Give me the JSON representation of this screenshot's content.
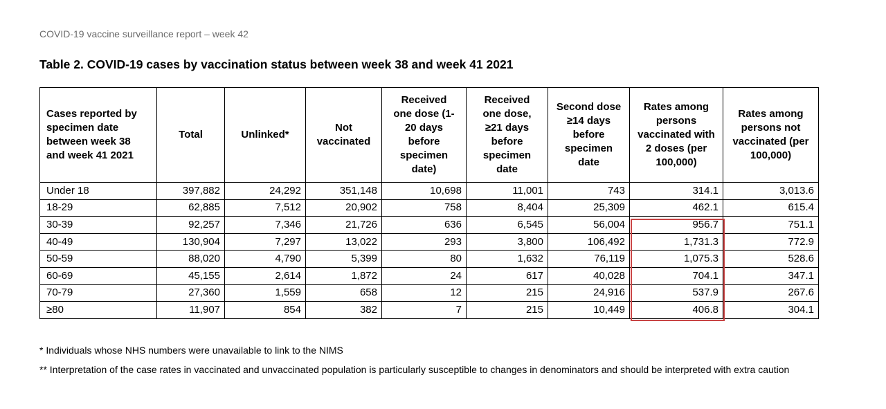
{
  "report_header": "COVID-19 vaccine surveillance report – week 42",
  "table_title": "Table 2. COVID-19 cases by vaccination status between week 38 and week 41 2021",
  "columns": [
    "Cases reported by specimen date between week 38 and week 41 2021",
    "Total",
    "Unlinked*",
    "Not vaccinated",
    "Received one dose (1-20 days before specimen date)",
    "Received one dose, ≥21 days before specimen date",
    "Second dose ≥14 days before specimen date",
    "Rates among persons vaccinated with 2 doses (per 100,000)",
    "Rates among persons not vaccinated (per 100,000)"
  ],
  "rows": [
    [
      "Under 18",
      "397,882",
      "24,292",
      "351,148",
      "10,698",
      "11,001",
      "743",
      "314.1",
      "3,013.6"
    ],
    [
      "18-29",
      "62,885",
      "7,512",
      "20,902",
      "758",
      "8,404",
      "25,309",
      "462.1",
      "615.4"
    ],
    [
      "30-39",
      "92,257",
      "7,346",
      "21,726",
      "636",
      "6,545",
      "56,004",
      "956.7",
      "751.1"
    ],
    [
      "40-49",
      "130,904",
      "7,297",
      "13,022",
      "293",
      "3,800",
      "106,492",
      "1,731.3",
      "772.9"
    ],
    [
      "50-59",
      "88,020",
      "4,790",
      "5,399",
      "80",
      "1,632",
      "76,119",
      "1,075.3",
      "528.6"
    ],
    [
      "60-69",
      "45,155",
      "2,614",
      "1,872",
      "24",
      "617",
      "40,028",
      "704.1",
      "347.1"
    ],
    [
      "70-79",
      "27,360",
      "1,559",
      "658",
      "12",
      "215",
      "24,916",
      "537.9",
      "267.6"
    ],
    [
      "≥80",
      "11,907",
      "854",
      "382",
      "7",
      "215",
      "10,449",
      "406.8",
      "304.1"
    ]
  ],
  "highlight_color": "#c84444",
  "highlight_rows": [
    "30-39",
    "40-49",
    "50-59",
    "60-69",
    "70-79",
    "≥80"
  ],
  "highlight_column": "Rates among persons vaccinated with 2 doses (per 100,000)",
  "footnotes": [
    "* Individuals whose NHS numbers were unavailable to link to the NIMS",
    "** Interpretation of the case rates in vaccinated and unvaccinated population is particularly susceptible to changes in denominators and should be interpreted with extra caution"
  ]
}
